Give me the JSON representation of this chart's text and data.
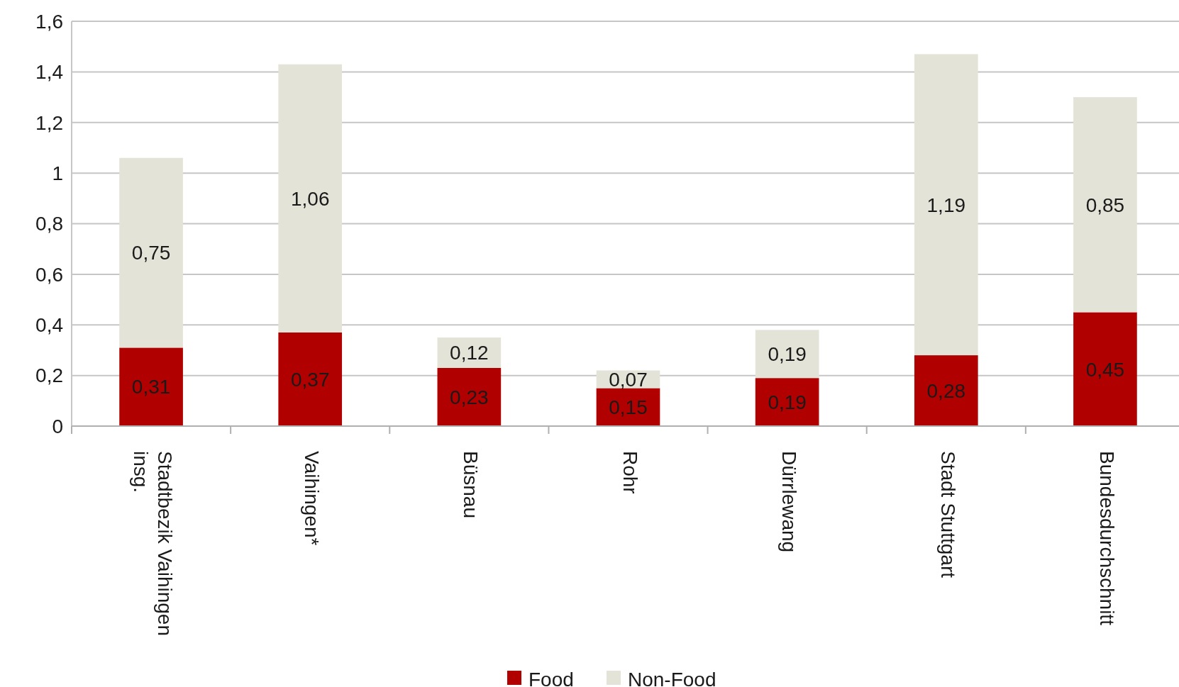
{
  "chart_data": {
    "type": "bar",
    "stacked": true,
    "categories": [
      "Stadtbezik Vaihingen insg.",
      "Vaihingen*",
      "Büsnau",
      "Rohr",
      "Dürrlewang",
      "Stadt Stuttgart",
      "Bundesdurchschnitt"
    ],
    "series": [
      {
        "name": "Food",
        "color": "#b00000",
        "values": [
          0.31,
          0.37,
          0.23,
          0.15,
          0.19,
          0.28,
          0.45
        ],
        "value_labels": [
          "0,31",
          "0,37",
          "0,23",
          "0,15",
          "0,19",
          "0,28",
          "0,45"
        ]
      },
      {
        "name": "Non-Food",
        "color": "#e3e3d8",
        "values": [
          0.75,
          1.06,
          0.12,
          0.07,
          0.19,
          1.19,
          0.85
        ],
        "value_labels": [
          "0,75",
          "1,06",
          "0,12",
          "0,07",
          "0,19",
          "1,19",
          "0,85"
        ]
      }
    ],
    "ylim": [
      0,
      1.6
    ],
    "yticks": [
      0,
      {
        "value": 0.2,
        "label": "0,2"
      },
      {
        "value": 0.4,
        "label": "0,4"
      },
      {
        "value": 0.6,
        "label": "0,6"
      },
      {
        "value": 0.8,
        "label": "0,8"
      },
      1,
      {
        "value": 1.2,
        "label": "1,2"
      },
      {
        "value": 1.4,
        "label": "1,4"
      },
      {
        "value": 1.6,
        "label": "1,6"
      }
    ],
    "grid": "y",
    "legend": "bottom"
  }
}
